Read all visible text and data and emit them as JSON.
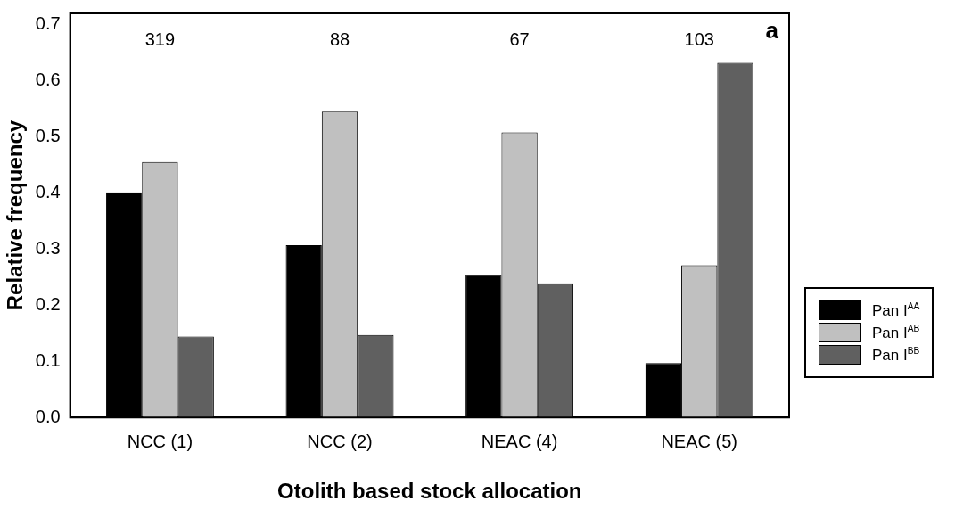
{
  "chart_data": {
    "type": "bar",
    "xlabel": "Otolith based stock allocation",
    "ylabel": "Relative frequency",
    "categories": [
      "NCC (1)",
      "NCC (2)",
      "NEAC (4)",
      "NEAC (5)"
    ],
    "series": [
      {
        "name": "Pan I$^{AA}$",
        "color": "#000000",
        "values": [
          0.401,
          0.307,
          0.254,
          0.097
        ]
      },
      {
        "name": "Pan I$^{AB}$",
        "color": "#c0c0c0",
        "values": [
          0.455,
          0.545,
          0.508,
          0.271
        ]
      },
      {
        "name": "Pan I$^{BB}$",
        "color": "#606060",
        "values": [
          0.144,
          0.147,
          0.239,
          0.632
        ]
      }
    ],
    "ylim": [
      0,
      0.72
    ],
    "yticks": [
      {
        "value": 0,
        "label": "0.0"
      },
      0.1,
      0.2,
      0.3,
      0.4,
      0.5,
      0.6,
      0.7
    ],
    "annotations": [
      "319",
      "88",
      "67",
      "103",
      "a"
    ],
    "grid": false,
    "legend": "right"
  }
}
